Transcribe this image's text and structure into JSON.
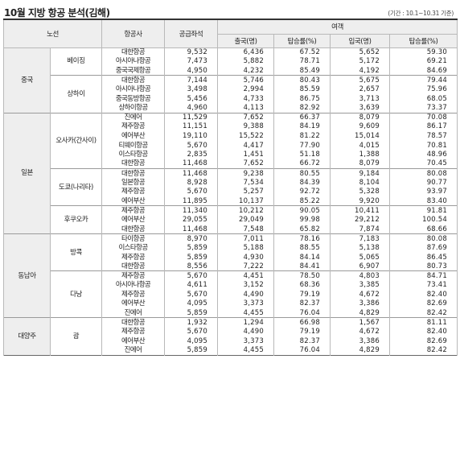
{
  "header": {
    "title": "10월 지방 항공 분석(김해)",
    "note": "(기간 : 10.1~10.31 기준)"
  },
  "table": {
    "headers": {
      "route": "노선",
      "airline": "항공사",
      "seats": "공급좌석",
      "passengers": "여객",
      "departures": "출국(명)",
      "dep_rate": "탑승률(%)",
      "arrivals": "입국(명)",
      "arr_rate": "탑승률(%)"
    },
    "groups": [
      {
        "name": "중국",
        "routes": [
          {
            "name": "베이징",
            "rows": [
              {
                "airline": "대한항공",
                "seats": "9,532",
                "dep": "6,436",
                "dep_rate": "67.52",
                "arr": "5,652",
                "arr_rate": "59.30"
              },
              {
                "airline": "아시아나항공",
                "seats": "7,473",
                "dep": "5,882",
                "dep_rate": "78.71",
                "arr": "5,172",
                "arr_rate": "69.21"
              },
              {
                "airline": "중국국제항공",
                "seats": "4,950",
                "dep": "4,232",
                "dep_rate": "85.49",
                "arr": "4,192",
                "arr_rate": "84.69"
              }
            ]
          },
          {
            "name": "상하이",
            "rows": [
              {
                "airline": "대한항공",
                "seats": "7,144",
                "dep": "5,746",
                "dep_rate": "80.43",
                "arr": "5,675",
                "arr_rate": "79.44"
              },
              {
                "airline": "아시아나항공",
                "seats": "3,498",
                "dep": "2,994",
                "dep_rate": "85.59",
                "arr": "2,657",
                "arr_rate": "75.96"
              },
              {
                "airline": "중국동방항공",
                "seats": "5,456",
                "dep": "4,733",
                "dep_rate": "86.75",
                "arr": "3,713",
                "arr_rate": "68.05"
              },
              {
                "airline": "상하이항공",
                "seats": "4,960",
                "dep": "4,113",
                "dep_rate": "82.92",
                "arr": "3,639",
                "arr_rate": "73.37"
              }
            ]
          }
        ]
      },
      {
        "name": "일본",
        "routes": [
          {
            "name": "오사카(간사이)",
            "rows": [
              {
                "airline": "진에어",
                "seats": "11,529",
                "dep": "7,652",
                "dep_rate": "66.37",
                "arr": "8,079",
                "arr_rate": "70.08"
              },
              {
                "airline": "제주항공",
                "seats": "11,151",
                "dep": "9,388",
                "dep_rate": "84.19",
                "arr": "9,609",
                "arr_rate": "86.17"
              },
              {
                "airline": "에어부산",
                "seats": "19,110",
                "dep": "15,522",
                "dep_rate": "81.22",
                "arr": "15,014",
                "arr_rate": "78.57"
              },
              {
                "airline": "티웨이항공",
                "seats": "5,670",
                "dep": "4,417",
                "dep_rate": "77.90",
                "arr": "4,015",
                "arr_rate": "70.81"
              },
              {
                "airline": "이스타항공",
                "seats": "2,835",
                "dep": "1,451",
                "dep_rate": "51.18",
                "arr": "1,388",
                "arr_rate": "48.96"
              },
              {
                "airline": "대한항공",
                "seats": "11,468",
                "dep": "7,652",
                "dep_rate": "66.72",
                "arr": "8,079",
                "arr_rate": "70.45"
              }
            ]
          },
          {
            "name": "도쿄(나리타)",
            "rows": [
              {
                "airline": "대한항공",
                "seats": "11,468",
                "dep": "9,238",
                "dep_rate": "80.55",
                "arr": "9,184",
                "arr_rate": "80.08"
              },
              {
                "airline": "일본항공",
                "seats": "8,928",
                "dep": "7,534",
                "dep_rate": "84.39",
                "arr": "8,104",
                "arr_rate": "90.77"
              },
              {
                "airline": "제주항공",
                "seats": "5,670",
                "dep": "5,257",
                "dep_rate": "92.72",
                "arr": "5,328",
                "arr_rate": "93.97"
              },
              {
                "airline": "에어부산",
                "seats": "11,895",
                "dep": "10,137",
                "dep_rate": "85.22",
                "arr": "9,920",
                "arr_rate": "83.40"
              }
            ]
          },
          {
            "name": "후쿠오카",
            "rows": [
              {
                "airline": "제주항공",
                "seats": "11,340",
                "dep": "10,212",
                "dep_rate": "90.05",
                "arr": "10,411",
                "arr_rate": "91.81"
              },
              {
                "airline": "에어부산",
                "seats": "29,055",
                "dep": "29,049",
                "dep_rate": "99.98",
                "arr": "29,212",
                "arr_rate": "100.54"
              },
              {
                "airline": "대한항공",
                "seats": "11,468",
                "dep": "7,548",
                "dep_rate": "65.82",
                "arr": "7,874",
                "arr_rate": "68.66"
              }
            ]
          }
        ]
      },
      {
        "name": "동남아",
        "routes": [
          {
            "name": "방콕",
            "rows": [
              {
                "airline": "타이항공",
                "seats": "8,970",
                "dep": "7,011",
                "dep_rate": "78.16",
                "arr": "7,183",
                "arr_rate": "80.08"
              },
              {
                "airline": "이스타항공",
                "seats": "5,859",
                "dep": "5,188",
                "dep_rate": "88.55",
                "arr": "5,138",
                "arr_rate": "87.69"
              },
              {
                "airline": "제주항공",
                "seats": "5,859",
                "dep": "4,930",
                "dep_rate": "84.14",
                "arr": "5,065",
                "arr_rate": "86.45"
              },
              {
                "airline": "대한항공",
                "seats": "8,556",
                "dep": "7,222",
                "dep_rate": "84.41",
                "arr": "6,907",
                "arr_rate": "80.73"
              }
            ]
          },
          {
            "name": "다낭",
            "rows": [
              {
                "airline": "제주항공",
                "seats": "5,670",
                "dep": "4,451",
                "dep_rate": "78.50",
                "arr": "4,803",
                "arr_rate": "84.71"
              },
              {
                "airline": "아시아나항공",
                "seats": "4,611",
                "dep": "3,152",
                "dep_rate": "68.36",
                "arr": "3,385",
                "arr_rate": "73.41"
              },
              {
                "airline": "제주항공",
                "seats": "5,670",
                "dep": "4,490",
                "dep_rate": "79.19",
                "arr": "4,672",
                "arr_rate": "82.40"
              },
              {
                "airline": "에어부산",
                "seats": "4,095",
                "dep": "3,373",
                "dep_rate": "82.37",
                "arr": "3,386",
                "arr_rate": "82.69"
              },
              {
                "airline": "진에어",
                "seats": "5,859",
                "dep": "4,455",
                "dep_rate": "76.04",
                "arr": "4,829",
                "arr_rate": "82.42"
              }
            ]
          }
        ]
      },
      {
        "name": "대양주",
        "routes": [
          {
            "name": "괌",
            "rows": [
              {
                "airline": "대한항공",
                "seats": "1,932",
                "dep": "1,294",
                "dep_rate": "66.98",
                "arr": "1,567",
                "arr_rate": "81.11"
              },
              {
                "airline": "제주항공",
                "seats": "5,670",
                "dep": "4,490",
                "dep_rate": "79.19",
                "arr": "4,672",
                "arr_rate": "82.40"
              },
              {
                "airline": "에어부산",
                "seats": "4,095",
                "dep": "3,373",
                "dep_rate": "82.37",
                "arr": "3,386",
                "arr_rate": "82.69"
              },
              {
                "airline": "진에어",
                "seats": "5,859",
                "dep": "4,455",
                "dep_rate": "76.04",
                "arr": "4,829",
                "arr_rate": "82.42"
              }
            ]
          }
        ]
      }
    ]
  }
}
